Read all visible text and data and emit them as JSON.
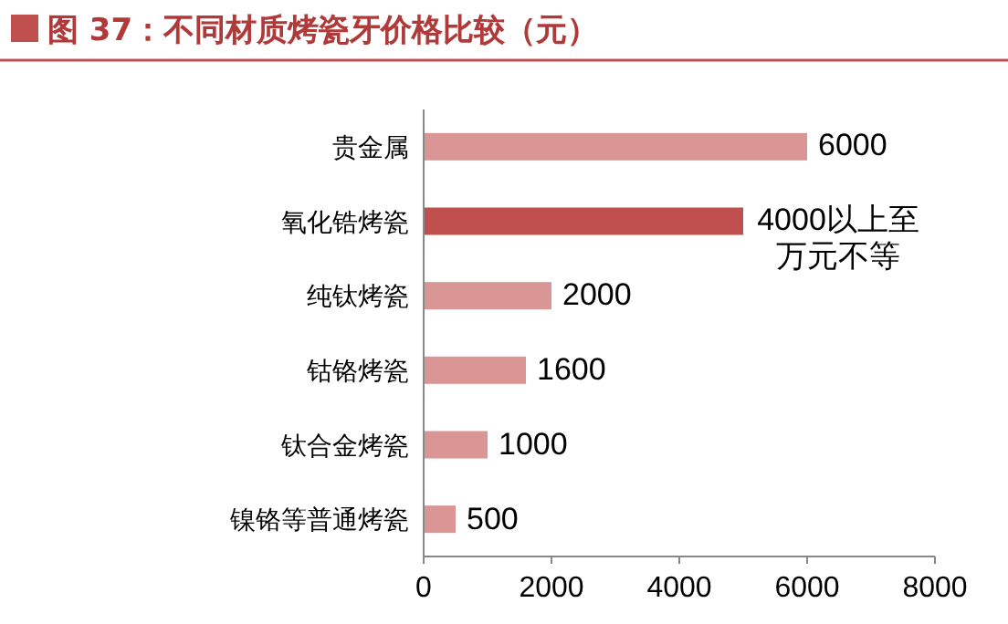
{
  "chart_data": {
    "type": "bar",
    "orientation": "horizontal",
    "title": "图 37：不同材质烤瓷牙价格比较（元）",
    "categories": [
      "贵金属",
      "氧化锆烤瓷",
      "纯钛烤瓷",
      "钴铬烤瓷",
      "钛合金烤瓷",
      "镍铬等普通烤瓷"
    ],
    "values": [
      6000,
      5000,
      2000,
      1600,
      1000,
      500
    ],
    "colors": [
      "#d99694",
      "#c0504d",
      "#d99694",
      "#d99694",
      "#d99694",
      "#d99694"
    ],
    "value_labels": [
      "6000",
      null,
      "2000",
      "1600",
      "1000",
      "500"
    ],
    "annotations": [
      {
        "text": "4000以上至万元不等",
        "x": 5000,
        "y": "氧化锆烤瓷"
      }
    ],
    "xlim": [
      0,
      8000
    ],
    "xticks": [
      0,
      2000,
      4000,
      6000,
      8000
    ]
  }
}
